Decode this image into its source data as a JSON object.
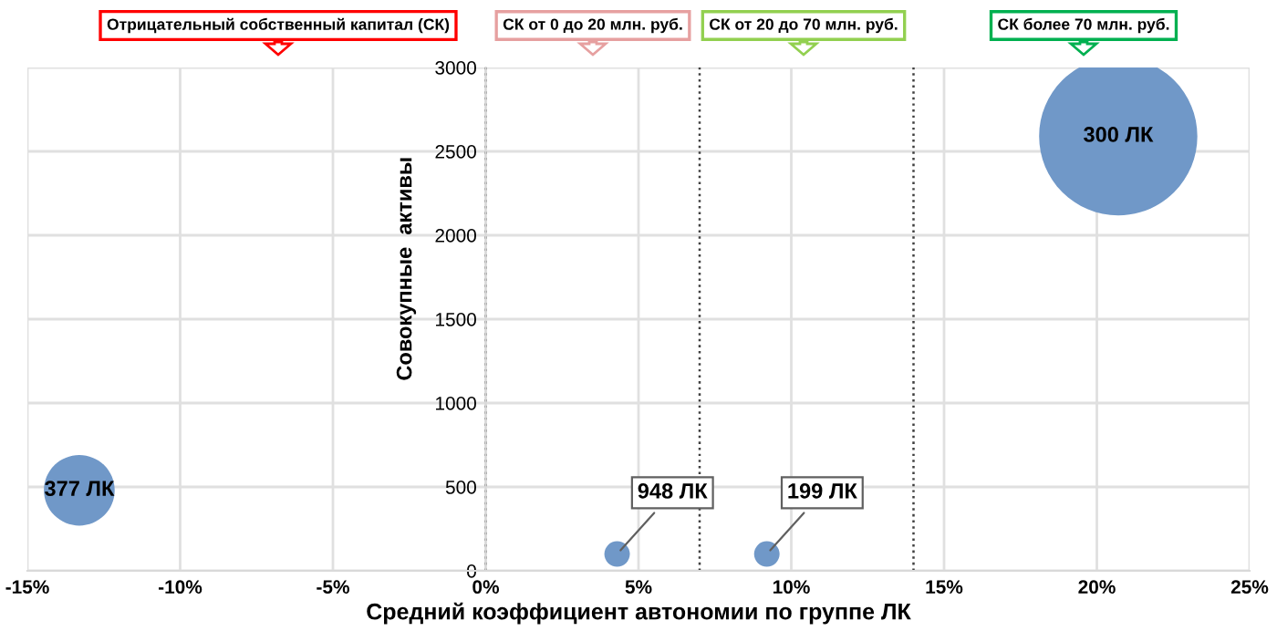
{
  "chart_data": {
    "type": "bubble",
    "xlabel": "Средний коэффициент автономии по группе ЛК",
    "ylabel": "Совокупные  активы",
    "x": [
      -13.3,
      4.3,
      9.2,
      20.7
    ],
    "series": [
      {
        "color": "#7098c8",
        "values": [
          480,
          100,
          100,
          2590
        ],
        "sizes": [
          0.2,
          0.026,
          0.026,
          1
        ]
      }
    ],
    "xlim": [
      -15,
      25
    ],
    "xticks": [
      {
        "value": -15,
        "label": "-15%"
      },
      {
        "value": -10,
        "label": "-10%"
      },
      {
        "value": -5,
        "label": "-5%"
      },
      {
        "value": 0,
        "label": "0%"
      },
      {
        "value": 5,
        "label": "5%"
      },
      {
        "value": 10,
        "label": "10%"
      },
      {
        "value": 15,
        "label": "15%"
      },
      {
        "value": 20,
        "label": "20%"
      },
      {
        "value": 25,
        "label": "25%"
      }
    ],
    "ylim": [
      0,
      3000
    ],
    "yticks": [
      0,
      500,
      1000,
      1500,
      2000,
      2500,
      3000
    ],
    "grid": true,
    "ref_lines": [
      {
        "axis": "x",
        "value": 0,
        "color": "#404040",
        "line_style": "dotted"
      },
      {
        "axis": "x",
        "value": 7,
        "color": "#404040",
        "line_style": "dotted"
      },
      {
        "axis": "x",
        "value": 14,
        "color": "#404040",
        "line_style": "dotted"
      }
    ],
    "annotations": [
      "Отрицательный собственный капитал (СК)",
      "СК от 0 до 20 млн. руб.",
      "СК от 20 до 70 млн. руб.",
      "СК более 70 млн. руб.",
      {
        "text": "377 ЛК",
        "x": -13.3,
        "y": 480
      },
      {
        "text": "948 ЛК",
        "x": 4.3,
        "y": 100
      },
      {
        "text": "199 ЛК",
        "x": 9.2,
        "y": 100
      },
      {
        "text": "300 ЛК",
        "x": 20.7,
        "y": 2590
      }
    ]
  }
}
